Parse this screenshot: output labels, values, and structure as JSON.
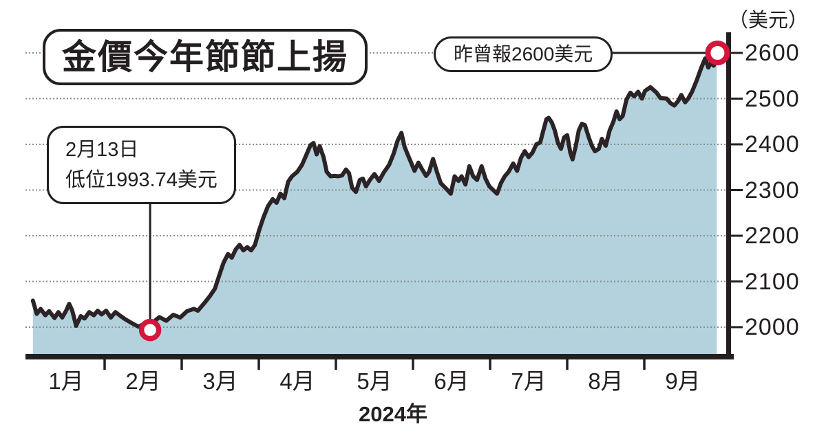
{
  "title": "金價今年節節上揚",
  "y_axis": {
    "unit_label": "（美元）",
    "ticks": [
      2600,
      2500,
      2400,
      2300,
      2200,
      2100,
      2000
    ]
  },
  "x_axis": {
    "months": [
      "1月",
      "2月",
      "3月",
      "4月",
      "5月",
      "6月",
      "7月",
      "8月",
      "9月"
    ],
    "year_label": "2024年"
  },
  "callouts": {
    "low": {
      "line1": "2月13日",
      "line2": "低位1993.74美元"
    },
    "high": {
      "label": "昨曾報2600美元"
    }
  },
  "colors": {
    "background": "#ffffff",
    "area_fill": "#b3d2dd",
    "price_line": "#2b2325",
    "marker_red": "#d4163a",
    "grid": "#8c8c8c",
    "axis": "#231f20",
    "text": "#231f20"
  },
  "chart_data": {
    "type": "area",
    "title": "金價今年節節上揚",
    "ylabel": "（美元）",
    "xlabel": "2024年",
    "x_unit": "months_since_jan1_2024",
    "x_categories": [
      "1月",
      "2月",
      "3月",
      "4月",
      "5月",
      "6月",
      "7月",
      "8月",
      "9月"
    ],
    "ylim": [
      1941,
      2640
    ],
    "grid": "horizontal_dotted",
    "legend": "none",
    "series": [
      {
        "name": "金價（美元）",
        "points": [
          [
            0.07,
            2058
          ],
          [
            0.12,
            2029
          ],
          [
            0.17,
            2040
          ],
          [
            0.23,
            2026
          ],
          [
            0.28,
            2035
          ],
          [
            0.35,
            2020
          ],
          [
            0.4,
            2033
          ],
          [
            0.45,
            2021
          ],
          [
            0.5,
            2036
          ],
          [
            0.54,
            2051
          ],
          [
            0.58,
            2036
          ],
          [
            0.63,
            2003
          ],
          [
            0.69,
            2024
          ],
          [
            0.74,
            2019
          ],
          [
            0.8,
            2033
          ],
          [
            0.86,
            2026
          ],
          [
            0.91,
            2036
          ],
          [
            0.96,
            2028
          ],
          [
            1.02,
            2036
          ],
          [
            1.08,
            2021
          ],
          [
            1.14,
            2033
          ],
          [
            1.21,
            2024
          ],
          [
            1.27,
            2017
          ],
          [
            1.35,
            2009
          ],
          [
            1.44,
            2001
          ],
          [
            1.52,
            2008
          ],
          [
            1.59,
            1994
          ],
          [
            1.66,
            2015
          ],
          [
            1.71,
            2022
          ],
          [
            1.8,
            2014
          ],
          [
            1.89,
            2027
          ],
          [
            1.98,
            2021
          ],
          [
            2.07,
            2035
          ],
          [
            2.16,
            2040
          ],
          [
            2.21,
            2036
          ],
          [
            2.3,
            2054
          ],
          [
            2.37,
            2069
          ],
          [
            2.43,
            2084
          ],
          [
            2.48,
            2110
          ],
          [
            2.54,
            2140
          ],
          [
            2.6,
            2160
          ],
          [
            2.65,
            2152
          ],
          [
            2.7,
            2170
          ],
          [
            2.75,
            2180
          ],
          [
            2.8,
            2168
          ],
          [
            2.85,
            2175
          ],
          [
            2.9,
            2168
          ],
          [
            2.95,
            2180
          ],
          [
            3.0,
            2210
          ],
          [
            3.06,
            2240
          ],
          [
            3.12,
            2265
          ],
          [
            3.18,
            2280
          ],
          [
            3.23,
            2272
          ],
          [
            3.28,
            2292
          ],
          [
            3.33,
            2282
          ],
          [
            3.38,
            2318
          ],
          [
            3.43,
            2330
          ],
          [
            3.5,
            2340
          ],
          [
            3.56,
            2355
          ],
          [
            3.62,
            2378
          ],
          [
            3.67,
            2398
          ],
          [
            3.71,
            2403
          ],
          [
            3.75,
            2378
          ],
          [
            3.79,
            2396
          ],
          [
            3.84,
            2372
          ],
          [
            3.88,
            2340
          ],
          [
            3.93,
            2330
          ],
          [
            3.98,
            2331
          ],
          [
            4.03,
            2330
          ],
          [
            4.08,
            2332
          ],
          [
            4.13,
            2345
          ],
          [
            4.17,
            2337
          ],
          [
            4.21,
            2305
          ],
          [
            4.26,
            2296
          ],
          [
            4.31,
            2322
          ],
          [
            4.35,
            2325
          ],
          [
            4.39,
            2308
          ],
          [
            4.44,
            2322
          ],
          [
            4.5,
            2335
          ],
          [
            4.56,
            2320
          ],
          [
            4.62,
            2338
          ],
          [
            4.69,
            2355
          ],
          [
            4.75,
            2380
          ],
          [
            4.8,
            2408
          ],
          [
            4.85,
            2425
          ],
          [
            4.89,
            2395
          ],
          [
            4.93,
            2378
          ],
          [
            4.98,
            2358
          ],
          [
            5.02,
            2342
          ],
          [
            5.07,
            2360
          ],
          [
            5.12,
            2345
          ],
          [
            5.17,
            2331
          ],
          [
            5.21,
            2340
          ],
          [
            5.26,
            2368
          ],
          [
            5.31,
            2340
          ],
          [
            5.36,
            2315
          ],
          [
            5.42,
            2305
          ],
          [
            5.49,
            2292
          ],
          [
            5.54,
            2330
          ],
          [
            5.59,
            2320
          ],
          [
            5.63,
            2330
          ],
          [
            5.68,
            2312
          ],
          [
            5.73,
            2352
          ],
          [
            5.78,
            2330
          ],
          [
            5.83,
            2322
          ],
          [
            5.89,
            2352
          ],
          [
            5.94,
            2325
          ],
          [
            5.99,
            2308
          ],
          [
            6.04,
            2300
          ],
          [
            6.09,
            2292
          ],
          [
            6.14,
            2315
          ],
          [
            6.19,
            2330
          ],
          [
            6.24,
            2340
          ],
          [
            6.3,
            2358
          ],
          [
            6.35,
            2342
          ],
          [
            6.4,
            2370
          ],
          [
            6.45,
            2385
          ],
          [
            6.5,
            2372
          ],
          [
            6.55,
            2382
          ],
          [
            6.6,
            2400
          ],
          [
            6.65,
            2404
          ],
          [
            6.69,
            2430
          ],
          [
            6.73,
            2455
          ],
          [
            6.76,
            2458
          ],
          [
            6.8,
            2448
          ],
          [
            6.84,
            2430
          ],
          [
            6.88,
            2403
          ],
          [
            6.92,
            2390
          ],
          [
            6.96,
            2415
          ],
          [
            7.0,
            2420
          ],
          [
            7.04,
            2382
          ],
          [
            7.07,
            2367
          ],
          [
            7.11,
            2395
          ],
          [
            7.15,
            2430
          ],
          [
            7.19,
            2445
          ],
          [
            7.23,
            2442
          ],
          [
            7.28,
            2415
          ],
          [
            7.32,
            2397
          ],
          [
            7.36,
            2385
          ],
          [
            7.41,
            2390
          ],
          [
            7.45,
            2412
          ],
          [
            7.5,
            2397
          ],
          [
            7.55,
            2430
          ],
          [
            7.6,
            2450
          ],
          [
            7.64,
            2472
          ],
          [
            7.68,
            2455
          ],
          [
            7.72,
            2462
          ],
          [
            7.77,
            2498
          ],
          [
            7.82,
            2513
          ],
          [
            7.87,
            2505
          ],
          [
            7.92,
            2515
          ],
          [
            7.97,
            2500
          ],
          [
            8.01,
            2517
          ],
          [
            8.08,
            2525
          ],
          [
            8.16,
            2513
          ],
          [
            8.21,
            2501
          ],
          [
            8.29,
            2500
          ],
          [
            8.34,
            2490
          ],
          [
            8.39,
            2485
          ],
          [
            8.44,
            2495
          ],
          [
            8.48,
            2508
          ],
          [
            8.53,
            2492
          ],
          [
            8.57,
            2500
          ],
          [
            8.62,
            2515
          ],
          [
            8.68,
            2540
          ],
          [
            8.74,
            2568
          ],
          [
            8.79,
            2588
          ],
          [
            8.83,
            2568
          ],
          [
            8.87,
            2580
          ],
          [
            8.9,
            2572
          ],
          [
            8.94,
            2585
          ]
        ]
      }
    ],
    "markers": [
      {
        "x": 1.59,
        "value": 1993.74,
        "date": "2月13日",
        "label": "低位1993.74美元"
      },
      {
        "x": 8.95,
        "value": 2600,
        "label": "昨曾報2600美元"
      }
    ]
  }
}
